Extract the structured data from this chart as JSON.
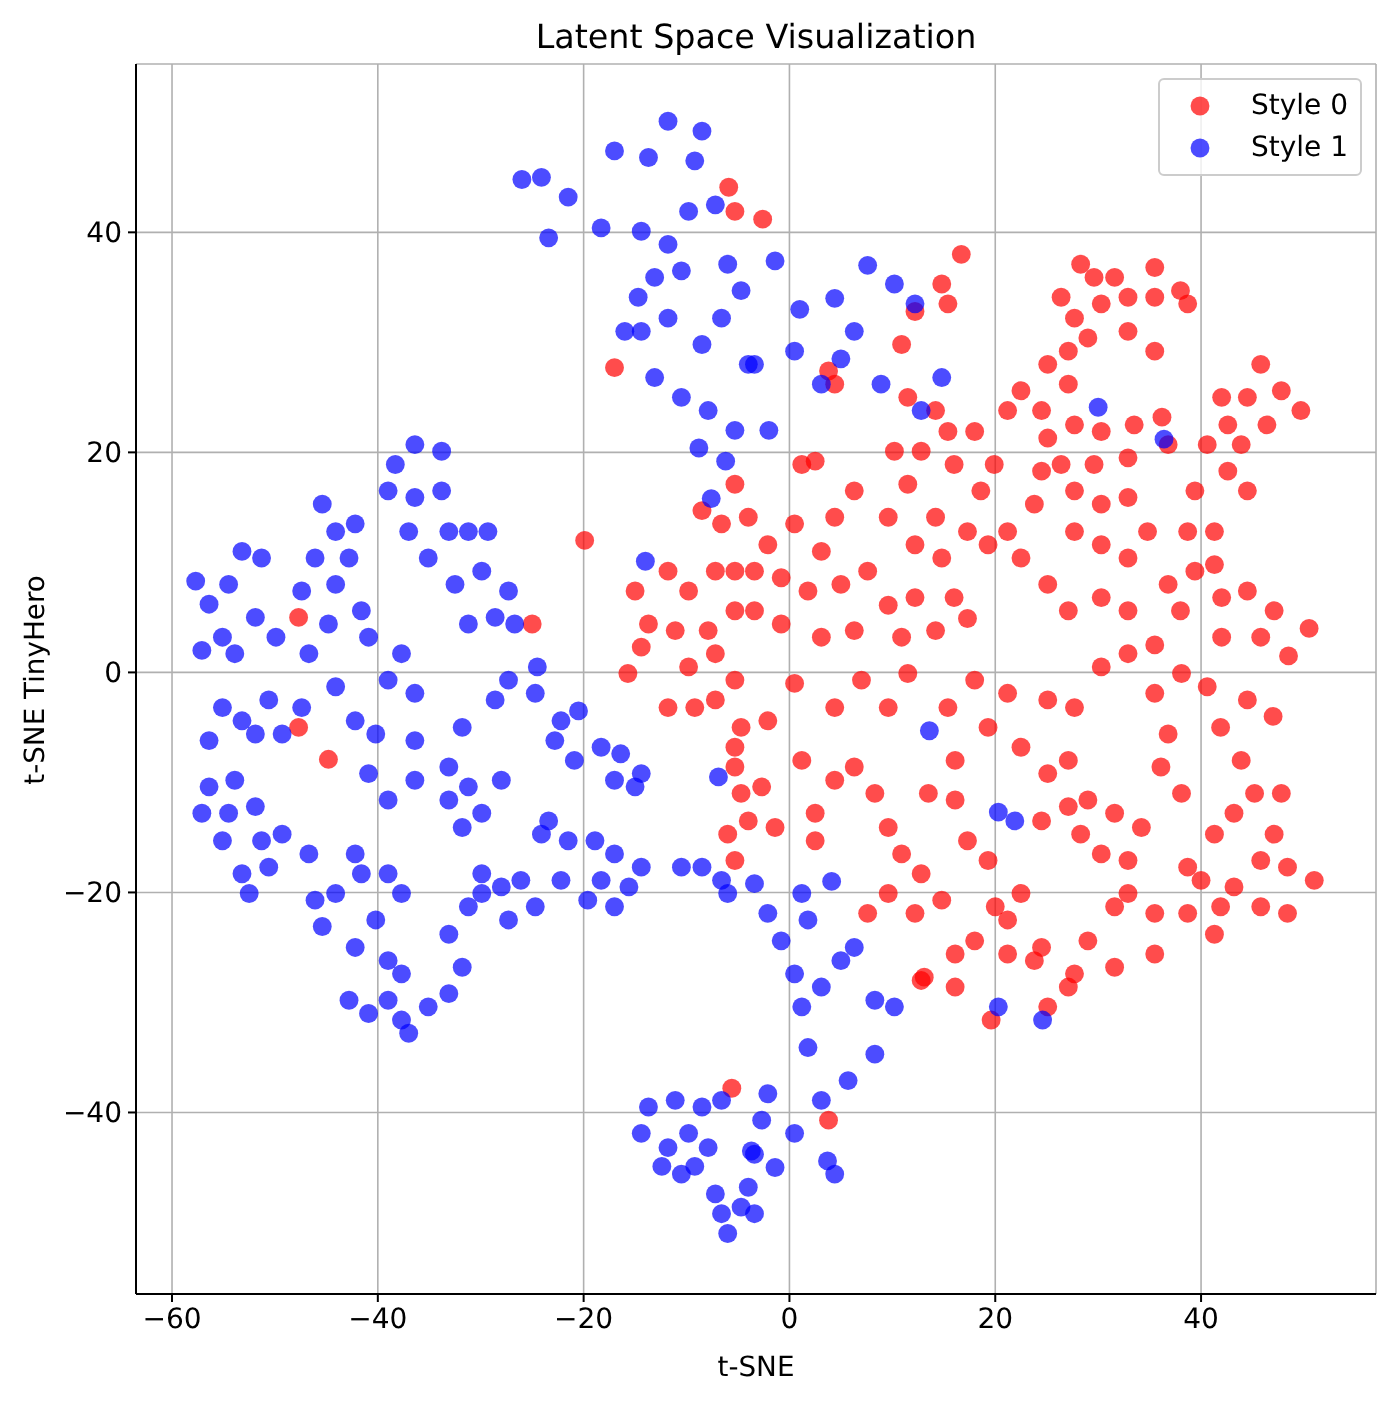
{
  "chart_data": {
    "type": "scatter",
    "title": "Latent Space Visualization",
    "xlabel": "t-SNE",
    "ylabel": "t-SNE TinyHero",
    "xlim": [
      -63.5,
      57
    ],
    "ylim": [
      -56.5,
      55.3
    ],
    "xticks": [
      -60,
      -40,
      -20,
      0,
      20,
      40
    ],
    "yticks": [
      -40,
      -20,
      0,
      20,
      40
    ],
    "grid": true,
    "legend": "top right",
    "marker": "circle",
    "series": [
      {
        "name": "Style 0",
        "color": "#ff0000",
        "x": [
          -2.6,
          -5.9,
          -5.3,
          16.7,
          14.8,
          15.4,
          12.2,
          10.9,
          3.8,
          4.4,
          -17,
          -19.9,
          28.3,
          29.6,
          31.6,
          35.5,
          26.4,
          27.7,
          30.3,
          32.9,
          35.5,
          38,
          38.7,
          32.9,
          35.5,
          29,
          27.1,
          25.1,
          22.5,
          21.2,
          24.5,
          27.1,
          27.7,
          25.1,
          30.3,
          33.5,
          36.2,
          36.8,
          32.9,
          29.6,
          26.4,
          24.5,
          45.8,
          42,
          44.5,
          47.8,
          49.7,
          46.4,
          42.6,
          40.6,
          43.9,
          42.6,
          44.5,
          39.4,
          38.7,
          41.3,
          41.3,
          39.4,
          42,
          44.5,
          47.1,
          45.8,
          42,
          38,
          35.5,
          32.9,
          30.3,
          27.1,
          25.1,
          22.5,
          21.2,
          23.8,
          27.7,
          30.3,
          32.9,
          34.8,
          32.9,
          30.3,
          27.7,
          36.8,
          19.9,
          18.6,
          16,
          12.8,
          10.2,
          15.4,
          18,
          11.5,
          14.2,
          17.3,
          19.3,
          12.2,
          14.8,
          9.6,
          6.3,
          4.4,
          3.1,
          0.5,
          -2.1,
          -3.4,
          -0.8,
          1.8,
          5,
          7.6,
          9.6,
          12.2,
          16,
          17.3,
          14.2,
          10.9,
          6.3,
          3.1,
          -0.8,
          -3.4,
          1.2,
          2.5,
          14.2,
          11.5,
          50.5,
          48.5,
          -5.3,
          -4,
          -8.5,
          -6.6,
          -15,
          -11.8,
          -9.8,
          -7.2,
          -5.3,
          -13.7,
          -11.1,
          -7.9,
          -5.3,
          -47.7,
          -25,
          -47.7,
          -44.8,
          -15.7,
          -11.8,
          -9.2,
          -7.2,
          -5.3,
          -4.7,
          -5.3,
          -4.7,
          -5.3,
          -7.2,
          -9.8,
          -14.4,
          -4,
          -6,
          -5.3,
          -5.6,
          3.8,
          16.1,
          13.1,
          19.6,
          25.1,
          27.1,
          31.6,
          35.5,
          29,
          23.8,
          21.2,
          18,
          20,
          22.5,
          31.6,
          35.5,
          32.9,
          38.7,
          41.3,
          41.9,
          45.8,
          48.4,
          51,
          48.4,
          45.8,
          43.2,
          40,
          38.7,
          47.1,
          47.8,
          45.2,
          43.2,
          43.9,
          41.9,
          44.5,
          40.6,
          38.1,
          36.8,
          36.1,
          38.1,
          41.3,
          34.2,
          32.9,
          30.3,
          28.3,
          29,
          31.6,
          27.1,
          24.5,
          25.1,
          22.5,
          27.1,
          27.7,
          30.3,
          32.9,
          35.5,
          25.1,
          21.2,
          19.3,
          18,
          15.4,
          16.1,
          13.5,
          16.1,
          17.3,
          19.3,
          21.2,
          24.5,
          27.7,
          9.6,
          10.9,
          12.8,
          9.6,
          14.8,
          7.6,
          12.2,
          12.8,
          16.1,
          8.3,
          6.3,
          4.4,
          2.5,
          2.5,
          -1.4,
          1.2,
          4.4,
          7,
          9.6,
          11.5,
          -2.1,
          -2.7,
          0.5,
          47
        ],
        "values": [
          41.2,
          44.1,
          41.9,
          38,
          35.3,
          33.5,
          32.8,
          29.8,
          27.4,
          26.2,
          27.7,
          12,
          37.1,
          35.9,
          35.9,
          36.8,
          34.1,
          32.2,
          33.5,
          34.1,
          34.1,
          34.7,
          33.5,
          31,
          29.2,
          30.4,
          29.2,
          28,
          25.6,
          23.8,
          23.8,
          26.2,
          22.5,
          21.3,
          21.9,
          22.5,
          23.2,
          20.7,
          19.5,
          18.9,
          18.9,
          18.3,
          28,
          25,
          25,
          25.6,
          23.8,
          22.5,
          22.5,
          20.7,
          20.7,
          18.3,
          16.5,
          16.5,
          12.8,
          12.8,
          9.8,
          9.2,
          6.8,
          7.4,
          5.6,
          3.2,
          3.2,
          5.6,
          2.5,
          5.6,
          6.8,
          5.6,
          8,
          10.4,
          12.8,
          15.3,
          16.5,
          15.3,
          15.9,
          12.8,
          10.4,
          11.6,
          12.8,
          8,
          18.9,
          16.5,
          18.9,
          20.1,
          20.1,
          21.9,
          21.9,
          17.1,
          14.1,
          12.8,
          11.6,
          11.6,
          10.4,
          14.1,
          16.5,
          14.1,
          11,
          13.5,
          11.6,
          9.2,
          8.6,
          7.4,
          8,
          9.2,
          6.1,
          6.8,
          6.8,
          4.9,
          3.8,
          3.2,
          3.8,
          3.2,
          4.4,
          5.6,
          18.9,
          19.2,
          23.8,
          25,
          4,
          1.5,
          17.1,
          14.1,
          14.7,
          13.5,
          7.4,
          9.2,
          7.4,
          9.2,
          9.2,
          4.4,
          3.8,
          3.8,
          5.6,
          5,
          4.4,
          -5,
          -7.9,
          -0.1,
          -3.2,
          -3.2,
          -2.5,
          -0.7,
          -5,
          -6.8,
          -11,
          -8.6,
          1.7,
          0.5,
          2.3,
          -13.5,
          -14.7,
          -17.1,
          -37.8,
          -40.7,
          -25.6,
          -27.7,
          -31.6,
          -30.4,
          -28.6,
          -26.8,
          -25.6,
          -24.4,
          -26.2,
          -25.6,
          -24.4,
          -21.3,
          -20.1,
          -21.3,
          -21.9,
          -20.1,
          -21.9,
          -23.8,
          -21.3,
          -21.3,
          -21.9,
          -18.9,
          -17.7,
          -17.1,
          -19.5,
          -18.9,
          -17.7,
          -14.7,
          -11,
          -11,
          -12.8,
          -8,
          -5,
          -2.5,
          -1.3,
          -0.1,
          -5.6,
          -8.6,
          -11,
          -14.7,
          -14.1,
          -17.1,
          -16.5,
          -14.7,
          -11.6,
          -12.8,
          -12.2,
          -13.5,
          -9.2,
          -6.8,
          -8,
          -3.2,
          0.5,
          1.7,
          -1.9,
          -2.5,
          -1.9,
          -5,
          -0.7,
          -3.2,
          -8,
          -11,
          -11.6,
          -15.3,
          -17.1,
          -22.5,
          -25,
          -27.4,
          -14.1,
          -16.5,
          -18.3,
          -20.1,
          -20.7,
          -21.9,
          -21.9,
          -28,
          -28.6,
          -11,
          -8.6,
          -9.8,
          -12.8,
          -15.3,
          -14.1,
          -8,
          -3.2,
          -0.7,
          -3.2,
          -0.1,
          -4.4,
          -10.4,
          -1,
          -4
        ]
      },
      {
        "name": "Style 1",
        "color": "#0000ff",
        "x": [
          -11.8,
          -8.5,
          -17,
          -13.7,
          -9.2,
          -24.1,
          -21.5,
          -23.4,
          -18.3,
          -14.4,
          -11.8,
          -9.8,
          -7.2,
          -13.1,
          -10.5,
          -6,
          -4.7,
          -14.4,
          -11.8,
          -8.5,
          -6.6,
          -13.1,
          -10.5,
          -7.9,
          -5.3,
          -8.8,
          -6.2,
          -16,
          -4,
          -14.7,
          -26,
          -1.4,
          7.6,
          10.2,
          12.2,
          4.4,
          6.3,
          0.5,
          3.1,
          8.9,
          12.8,
          14.8,
          -2,
          -3.4,
          1,
          5,
          -36.4,
          -38.3,
          -33.8,
          -39,
          -36.4,
          -33.8,
          -37,
          -33.1,
          -35.1,
          -31.2,
          -29.3,
          -32.5,
          -29.9,
          -27.3,
          -28.6,
          -31.2,
          -26.7,
          -45.4,
          -44.1,
          -42.2,
          -46.1,
          -42.8,
          -47.4,
          -44.1,
          -41.6,
          -44.8,
          -40.9,
          -53.2,
          -51.3,
          -57.7,
          -54.5,
          -56.4,
          -51.9,
          -49.9,
          -55.1,
          -57.1,
          -53.9,
          -46.7,
          -37.7,
          -39,
          -36.4,
          -44.1,
          -47.4,
          -55.1,
          -53.2,
          -50.6,
          -49.3,
          -56.4,
          -51.9,
          -42.2,
          -40.2,
          -36.4,
          -31.8,
          -28.6,
          -27.3,
          -24.7,
          -22.2,
          -40.9,
          -39,
          -36.4,
          -33.1,
          -31.2,
          -28,
          -29.9,
          -31.8,
          -33.1,
          -56.4,
          -53.9,
          -57.1,
          -54.5,
          -51.9,
          -55.1,
          -51.3,
          -49.3,
          -53.2,
          -50.6,
          -52.5,
          -46.7,
          -46.1,
          -45.4,
          -44.1,
          -42.2,
          -41.6,
          -39,
          -37.7,
          -40.2,
          -42.2,
          -42.8,
          -40.9,
          -39,
          -37.7,
          -37,
          -35.1,
          -33.1,
          -37.7,
          -39,
          -33.1,
          -31.8,
          -31.2,
          -29.9,
          -28,
          -26.1,
          -29.9,
          -24.7,
          -27.3,
          -24.1,
          -21.5,
          -22.2,
          -18.9,
          -17,
          -18.3,
          -15.6,
          -19.6,
          -17,
          -14.4,
          -23.4,
          -22.8,
          -20.9,
          -18.3,
          -16.4,
          -14.4,
          -17,
          -15,
          -10.5,
          -8.5,
          -6.6,
          -6,
          -6.9,
          -24.5,
          -20.5,
          -13.7,
          -11.1,
          -8.5,
          -6.6,
          -14.4,
          -11.8,
          -9.8,
          -7.9,
          -12.4,
          -10.5,
          -9.2,
          -7.2,
          -6.6,
          -6,
          -4.7,
          -4,
          -3.7,
          -2.1,
          -0.8,
          1.2,
          1.8,
          0.5,
          1.2,
          3.1,
          5,
          6.3,
          8.3,
          10.2,
          8.3,
          5.7,
          3.1,
          1.8,
          -2.1,
          0.5,
          3.7,
          4.4,
          -1.4,
          -3.4,
          -3.4,
          -2.7,
          13.6,
          20.3,
          21.9,
          20.3,
          24.6,
          4.1,
          -3.4,
          -14,
          30,
          36.4,
          -7.6
        ],
        "values": [
          50.1,
          49.2,
          47.4,
          46.8,
          46.5,
          45,
          43.2,
          39.5,
          40.4,
          40.1,
          38.9,
          41.9,
          42.5,
          35.9,
          36.5,
          37.1,
          34.7,
          31,
          32.2,
          29.8,
          32.2,
          26.8,
          25,
          23.8,
          22,
          20.4,
          19.2,
          31,
          28,
          34.1,
          44.8,
          37.4,
          37,
          35.3,
          33.5,
          34,
          31,
          29.2,
          26.2,
          26.2,
          23.8,
          26.8,
          22,
          28,
          33,
          28.5,
          20.7,
          18.9,
          20.1,
          16.5,
          15.9,
          16.5,
          12.8,
          12.8,
          10.4,
          12.8,
          12.8,
          8,
          9.2,
          7.4,
          5,
          4.4,
          4.4,
          15.3,
          12.8,
          13.5,
          10.4,
          10.4,
          7.4,
          8,
          5.6,
          4.4,
          3.2,
          11,
          10.4,
          8.3,
          8,
          6.2,
          5,
          3.2,
          3.2,
          2,
          1.7,
          1.7,
          1.7,
          -0.7,
          -1.9,
          -1.3,
          -3.2,
          -3.2,
          -4.4,
          -2.5,
          -5.6,
          -6.2,
          -5.6,
          -4.4,
          -5.6,
          -6.2,
          -5,
          -2.5,
          -0.7,
          -1.9,
          -4.4,
          -9.2,
          -11.6,
          -9.8,
          -8.6,
          -10.4,
          -9.8,
          -12.8,
          -14.1,
          -11.6,
          -10.4,
          -9.8,
          -12.8,
          -12.8,
          -12.2,
          -15.3,
          -15.3,
          -14.7,
          -18.3,
          -17.7,
          -20.1,
          -16.5,
          -20.7,
          -23.1,
          -20.1,
          -16.5,
          -18.3,
          -18.3,
          -20.1,
          -22.5,
          -25,
          -29.8,
          -31,
          -29.8,
          -31.6,
          -32.8,
          -30.4,
          -29.2,
          -27.4,
          -26.2,
          -23.8,
          -26.8,
          -21.3,
          -20.1,
          -19.5,
          -18.9,
          -18.3,
          -21.3,
          -22.5,
          -14.7,
          -15.3,
          -18.9,
          -15.3,
          -16.5,
          -18.9,
          -19.5,
          -20.7,
          -21.3,
          -17.7,
          -13.5,
          -6.2,
          -8,
          -6.8,
          -7.4,
          -9.2,
          -9.8,
          -10.4,
          -17.7,
          -17.7,
          -18.9,
          -20.1,
          -9.5,
          0.5,
          -3.5,
          -39.5,
          -38.9,
          -39.5,
          -38.9,
          -41.9,
          -43.2,
          -41.9,
          -43.2,
          -44.9,
          -45.6,
          -44.9,
          -47.4,
          -49.2,
          -51,
          -48.6,
          -46.8,
          -43.5,
          -21.9,
          -24.4,
          -20.1,
          -22.5,
          -27.4,
          -30.4,
          -28.6,
          -26.2,
          -25,
          -29.8,
          -30.4,
          -34.7,
          -37.1,
          -38.9,
          -34.1,
          -38.3,
          -41.9,
          -44.4,
          -45.6,
          -45,
          -43.8,
          -49.2,
          -40.7,
          -5.3,
          -12.7,
          -13.5,
          -30.4,
          -31.6,
          -19,
          -19.2,
          10.1,
          24.1,
          21.2,
          15.8
        ]
      }
    ]
  }
}
